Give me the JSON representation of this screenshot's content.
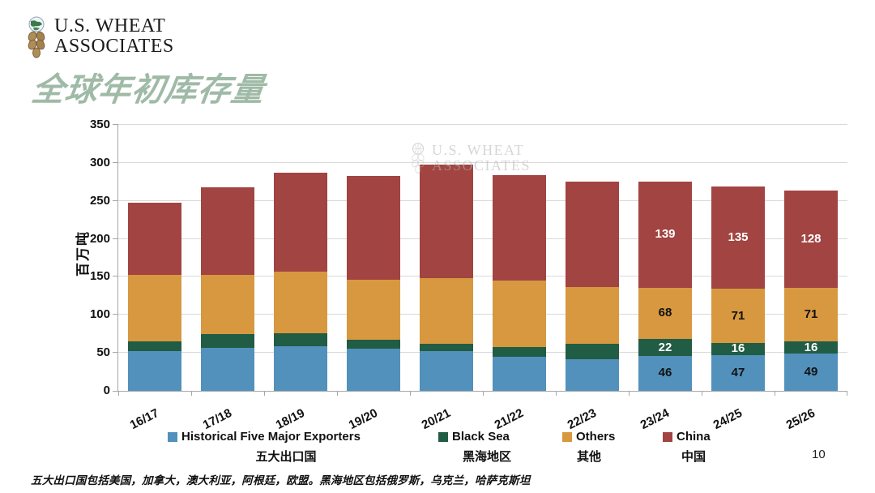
{
  "logo": {
    "line1": "U.S. WHEAT",
    "line2": "ASSOCIATES"
  },
  "page_title": "全球年初库存量",
  "watermark": {
    "line1": "U.S. WHEAT",
    "line2": "ASSOCIATES"
  },
  "page_number": "10",
  "footnote": "五大出口国包括美国，加拿大，澳大利亚，阿根廷，欧盟。黑海地区包括俄罗斯，乌克兰，哈萨克斯坦",
  "chart_data": {
    "type": "bar",
    "stacked": true,
    "title": "全球年初库存量",
    "ylabel": "百万吨",
    "ylim": [
      0,
      350
    ],
    "ytick_step": 50,
    "grid": true,
    "legend_position": "bottom",
    "categories": [
      "16/17",
      "17/18",
      "18/19",
      "19/20",
      "20/21",
      "21/22",
      "22/23",
      "23/24",
      "24/25",
      "25/26"
    ],
    "series": [
      {
        "name": "Historical Five Major Exporters",
        "name_zh": "五大出口国",
        "color": "#5191BC",
        "label_color": "#111111",
        "values": [
          52,
          57,
          59,
          55,
          52,
          45,
          42,
          46,
          47,
          49
        ]
      },
      {
        "name": "Black Sea",
        "name_zh": "黑海地区",
        "color": "#215C44",
        "label_color": "#ffffff",
        "values": [
          13,
          18,
          17,
          12,
          10,
          13,
          20,
          22,
          16,
          16
        ]
      },
      {
        "name": "Others",
        "name_zh": "其他",
        "color": "#D79840",
        "label_color": "#111111",
        "values": [
          88,
          78,
          81,
          79,
          86,
          87,
          75,
          68,
          71,
          71
        ]
      },
      {
        "name": "China",
        "name_zh": "中国",
        "color": "#A14442",
        "label_color": "#ffffff",
        "values": [
          95,
          115,
          130,
          137,
          150,
          139,
          138,
          139,
          135,
          128
        ]
      }
    ],
    "data_label_start_index": 7,
    "bar_totals": [
      248,
      268,
      287,
      283,
      298,
      284,
      275,
      275,
      269,
      264
    ]
  }
}
